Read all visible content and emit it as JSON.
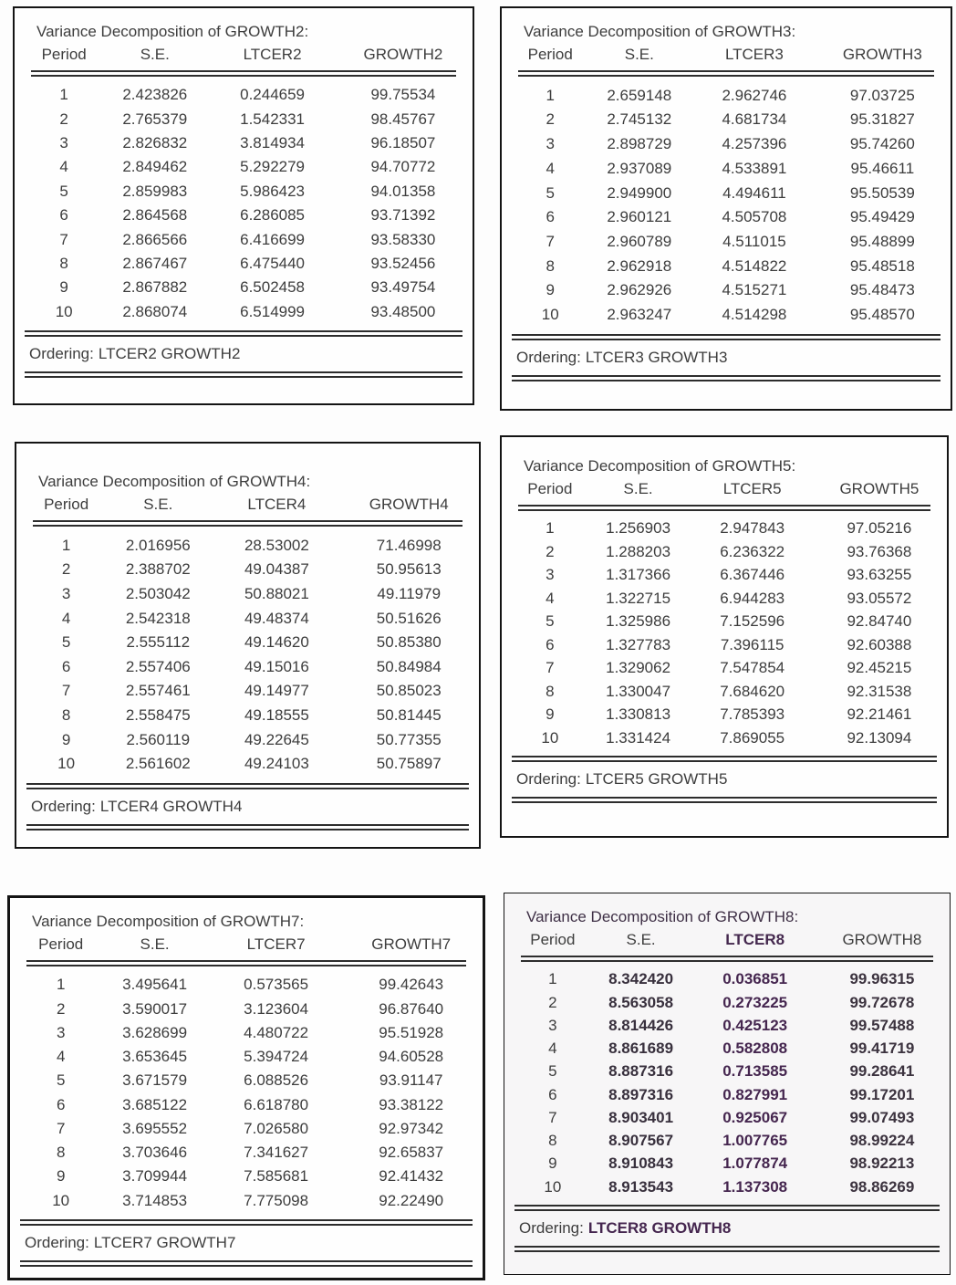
{
  "colors": {
    "text": "#3d3d3d",
    "border": "#141414",
    "accent_purple": "#45264f",
    "background": "#fdfdfd"
  },
  "tables": [
    {
      "title": "Variance Decomposition of GROWTH2:",
      "columns": [
        "Period",
        "S.E.",
        "LTCER2",
        "GROWTH2"
      ],
      "rows": [
        [
          "1",
          "2.423826",
          "0.244659",
          "99.75534"
        ],
        [
          "2",
          "2.765379",
          "1.542331",
          "98.45767"
        ],
        [
          "3",
          "2.826832",
          "3.814934",
          "96.18507"
        ],
        [
          "4",
          "2.849462",
          "5.292279",
          "94.70772"
        ],
        [
          "5",
          "2.859983",
          "5.986423",
          "94.01358"
        ],
        [
          "6",
          "2.864568",
          "6.286085",
          "93.71392"
        ],
        [
          "7",
          "2.866566",
          "6.416699",
          "93.58330"
        ],
        [
          "8",
          "2.867467",
          "6.475440",
          "93.52456"
        ],
        [
          "9",
          "2.867882",
          "6.502458",
          "93.49754"
        ],
        [
          "10",
          "2.868074",
          "6.514999",
          "93.48500"
        ]
      ],
      "ordering_label": "Ordering:",
      "ordering_value": "LTCER2 GROWTH2"
    },
    {
      "title": "Variance Decomposition of GROWTH3:",
      "columns": [
        "Period",
        "S.E.",
        "LTCER3",
        "GROWTH3"
      ],
      "rows": [
        [
          "1",
          "2.659148",
          "2.962746",
          "97.03725"
        ],
        [
          "2",
          "2.745132",
          "4.681734",
          "95.31827"
        ],
        [
          "3",
          "2.898729",
          "4.257396",
          "95.74260"
        ],
        [
          "4",
          "2.937089",
          "4.533891",
          "95.46611"
        ],
        [
          "5",
          "2.949900",
          "4.494611",
          "95.50539"
        ],
        [
          "6",
          "2.960121",
          "4.505708",
          "95.49429"
        ],
        [
          "7",
          "2.960789",
          "4.511015",
          "95.48899"
        ],
        [
          "8",
          "2.962918",
          "4.514822",
          "95.48518"
        ],
        [
          "9",
          "2.962926",
          "4.515271",
          "95.48473"
        ],
        [
          "10",
          "2.963247",
          "4.514298",
          "95.48570"
        ]
      ],
      "ordering_label": "Ordering:",
      "ordering_value": "LTCER3 GROWTH3"
    },
    {
      "title": "Variance Decomposition of GROWTH4:",
      "columns": [
        "Period",
        "S.E.",
        "LTCER4",
        "GROWTH4"
      ],
      "rows": [
        [
          "1",
          "2.016956",
          "28.53002",
          "71.46998"
        ],
        [
          "2",
          "2.388702",
          "49.04387",
          "50.95613"
        ],
        [
          "3",
          "2.503042",
          "50.88021",
          "49.11979"
        ],
        [
          "4",
          "2.542318",
          "49.48374",
          "50.51626"
        ],
        [
          "5",
          "2.555112",
          "49.14620",
          "50.85380"
        ],
        [
          "6",
          "2.557406",
          "49.15016",
          "50.84984"
        ],
        [
          "7",
          "2.557461",
          "49.14977",
          "50.85023"
        ],
        [
          "8",
          "2.558475",
          "49.18555",
          "50.81445"
        ],
        [
          "9",
          "2.560119",
          "49.22645",
          "50.77355"
        ],
        [
          "10",
          "2.561602",
          "49.24103",
          "50.75897"
        ]
      ],
      "ordering_label": "Ordering:",
      "ordering_value": "LTCER4 GROWTH4"
    },
    {
      "title": "Variance Decomposition of GROWTH5:",
      "columns": [
        "Period",
        "S.E.",
        "LTCER5",
        "GROWTH5"
      ],
      "rows": [
        [
          "1",
          "1.256903",
          "2.947843",
          "97.05216"
        ],
        [
          "2",
          "1.288203",
          "6.236322",
          "93.76368"
        ],
        [
          "3",
          "1.317366",
          "6.367446",
          "93.63255"
        ],
        [
          "4",
          "1.322715",
          "6.944283",
          "93.05572"
        ],
        [
          "5",
          "1.325986",
          "7.152596",
          "92.84740"
        ],
        [
          "6",
          "1.327783",
          "7.396115",
          "92.60388"
        ],
        [
          "7",
          "1.329062",
          "7.547854",
          "92.45215"
        ],
        [
          "8",
          "1.330047",
          "7.684620",
          "92.31538"
        ],
        [
          "9",
          "1.330813",
          "7.785393",
          "92.21461"
        ],
        [
          "10",
          "1.331424",
          "7.869055",
          "92.13094"
        ]
      ],
      "ordering_label": "Ordering:",
      "ordering_value": "LTCER5 GROWTH5"
    },
    {
      "title": "Variance Decomposition of GROWTH7:",
      "columns": [
        "Period",
        "S.E.",
        "LTCER7",
        "GROWTH7"
      ],
      "rows": [
        [
          "1",
          "3.495641",
          "0.573565",
          "99.42643"
        ],
        [
          "2",
          "3.590017",
          "3.123604",
          "96.87640"
        ],
        [
          "3",
          "3.628699",
          "4.480722",
          "95.51928"
        ],
        [
          "4",
          "3.653645",
          "5.394724",
          "94.60528"
        ],
        [
          "5",
          "3.671579",
          "6.088526",
          "93.91147"
        ],
        [
          "6",
          "3.685122",
          "6.618780",
          "93.38122"
        ],
        [
          "7",
          "3.695552",
          "7.026580",
          "92.97342"
        ],
        [
          "8",
          "3.703646",
          "7.341627",
          "92.65837"
        ],
        [
          "9",
          "3.709944",
          "7.585681",
          "92.41432"
        ],
        [
          "10",
          "3.714853",
          "7.775098",
          "92.22490"
        ]
      ],
      "ordering_label": "Ordering:",
      "ordering_value": "LTCER7 GROWTH7"
    },
    {
      "title": "Variance Decomposition of GROWTH8:",
      "columns": [
        "Period",
        "S.E.",
        "LTCER8",
        "GROWTH8"
      ],
      "rows": [
        [
          "1",
          "8.342420",
          "0.036851",
          "99.96315"
        ],
        [
          "2",
          "8.563058",
          "0.273225",
          "99.72678"
        ],
        [
          "3",
          "8.814426",
          "0.425123",
          "99.57488"
        ],
        [
          "4",
          "8.861689",
          "0.582808",
          "99.41719"
        ],
        [
          "5",
          "8.887316",
          "0.713585",
          "99.28641"
        ],
        [
          "6",
          "8.897316",
          "0.827991",
          "99.17201"
        ],
        [
          "7",
          "8.903401",
          "0.925067",
          "99.07493"
        ],
        [
          "8",
          "8.907567",
          "1.007765",
          "98.99224"
        ],
        [
          "9",
          "8.910843",
          "1.077874",
          "98.92213"
        ],
        [
          "10",
          "8.913543",
          "1.137308",
          "98.86269"
        ]
      ],
      "ordering_label": "Ordering:",
      "ordering_value": "LTCER8 GROWTH8"
    }
  ]
}
